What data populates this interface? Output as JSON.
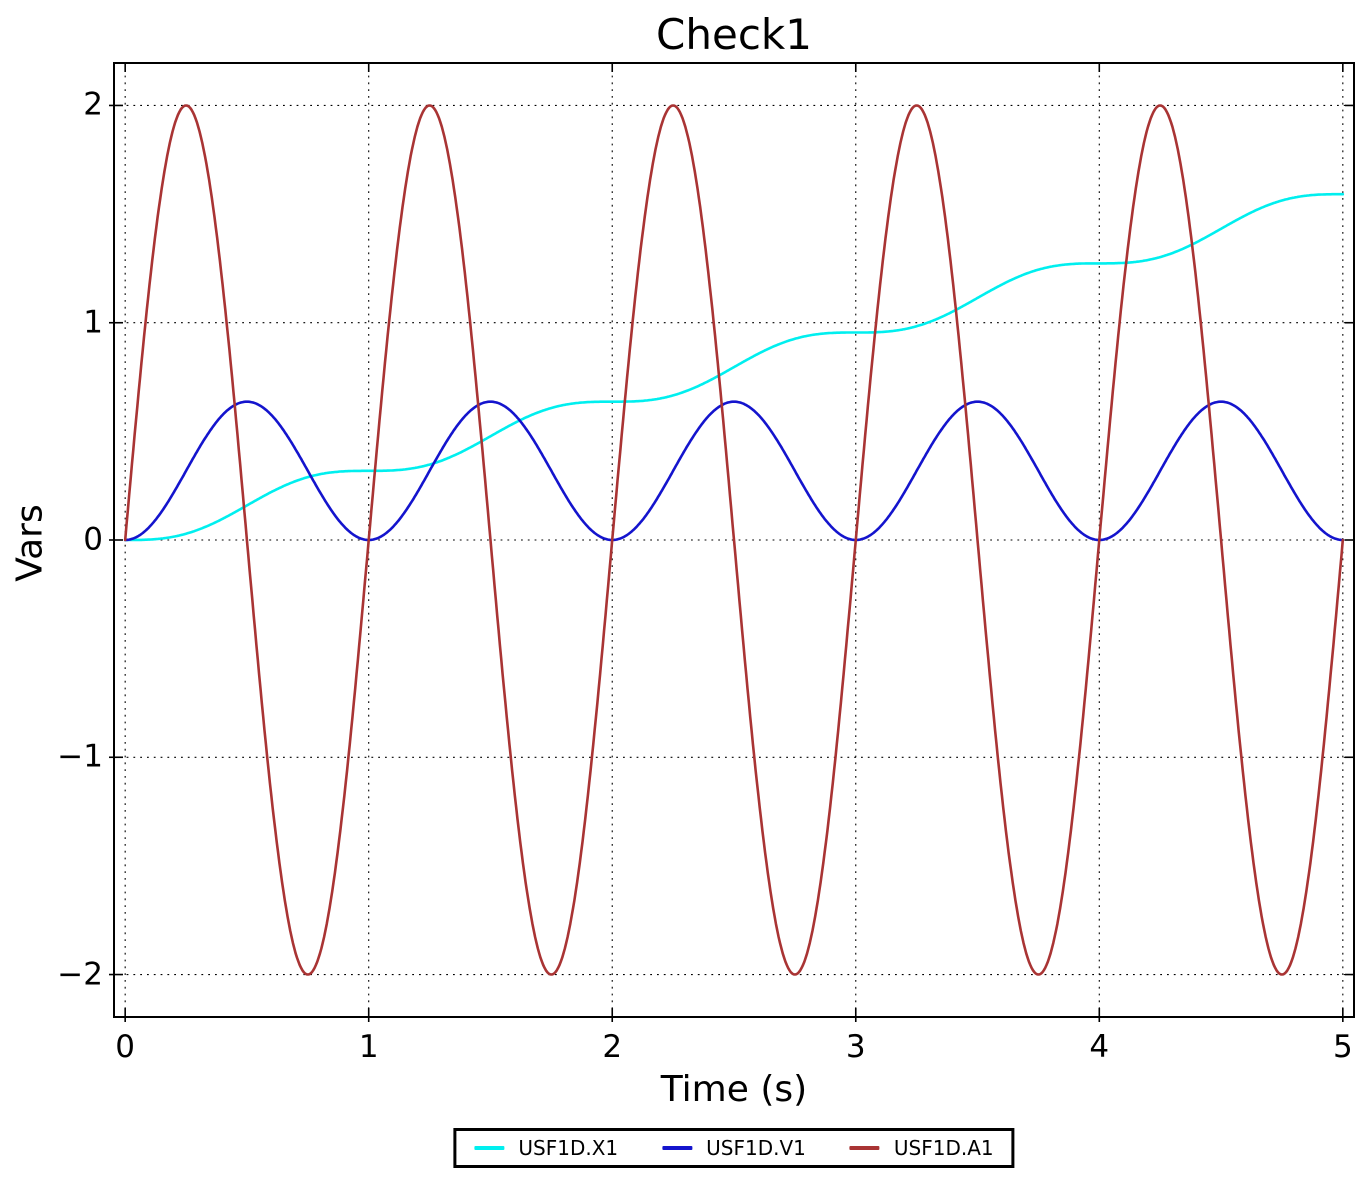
{
  "figure": {
    "background": "#ffffff"
  },
  "chart_data": {
    "type": "line",
    "title": "Check1",
    "xlabel": "Time (s)",
    "ylabel": "Vars",
    "xlim": [
      -0.05,
      5.05
    ],
    "ylim": [
      -2.2,
      2.2
    ],
    "x_range": [
      0,
      5
    ],
    "xticks": [
      0,
      1,
      2,
      3,
      4,
      5
    ],
    "xtick_labels": [
      "0",
      "1",
      "2",
      "3",
      "4",
      "5"
    ],
    "yticks": [
      -2,
      -1,
      0,
      1,
      2
    ],
    "ytick_labels": [
      "−2",
      "−1",
      "0",
      "1",
      "2"
    ],
    "grid": {
      "visible": true,
      "line_style": "dotted",
      "color": "#000000"
    },
    "axis_color": "#000000",
    "legend": {
      "position": "bottom-center",
      "border_color": "#000000",
      "background": "#ffffff"
    },
    "series": [
      {
        "name": "USF1D.X1",
        "color": "#00efef",
        "line_width": 2.6,
        "model": {
          "form": "sin",
          "offset": 0,
          "slope": 0.3183099,
          "amp": -0.0506606,
          "freq": 1
        },
        "key_points": {
          "t": [
            0,
            0.25,
            0.5,
            0.75,
            1,
            1.25,
            1.5,
            1.75,
            2,
            2.25,
            2.5,
            2.75,
            3,
            3.25,
            3.5,
            3.75,
            4,
            4.25,
            4.5,
            4.75,
            5
          ],
          "v": [
            0,
            0.0289,
            0.1592,
            0.2894,
            0.3183,
            0.3472,
            0.4775,
            0.6077,
            0.6366,
            0.6655,
            0.7958,
            0.926,
            0.9549,
            0.9839,
            1.1141,
            1.2443,
            1.2732,
            1.3022,
            1.4324,
            1.5626,
            1.5915
          ]
        }
      },
      {
        "name": "USF1D.V1",
        "color": "#1414cd",
        "line_width": 2.6,
        "model": {
          "form": "cos",
          "offset": 0.3183099,
          "slope": 0,
          "amp": -0.3183099,
          "freq": 1
        },
        "key_points": {
          "t": [
            0,
            0.25,
            0.5,
            0.75,
            1,
            1.25,
            1.5,
            1.75,
            2,
            2.25,
            2.5,
            2.75,
            3,
            3.25,
            3.5,
            3.75,
            4,
            4.25,
            4.5,
            4.75,
            5
          ],
          "v": [
            0,
            0.3183,
            0.6366,
            0.3183,
            0,
            0.3183,
            0.6366,
            0.3183,
            0,
            0.3183,
            0.6366,
            0.3183,
            0,
            0.3183,
            0.6366,
            0.3183,
            0,
            0.3183,
            0.6366,
            0.3183,
            0
          ]
        }
      },
      {
        "name": "USF1D.A1",
        "color": "#a93434",
        "line_width": 2.6,
        "model": {
          "form": "sin",
          "offset": 0,
          "slope": 0,
          "amp": 2,
          "freq": 1
        },
        "key_points": {
          "t": [
            0,
            0.25,
            0.5,
            0.75,
            1,
            1.25,
            1.5,
            1.75,
            2,
            2.25,
            2.5,
            2.75,
            3,
            3.25,
            3.5,
            3.75,
            4,
            4.25,
            4.5,
            4.75,
            5
          ],
          "v": [
            0,
            2,
            0,
            -2,
            0,
            2,
            0,
            -2,
            0,
            2,
            0,
            -2,
            0,
            2,
            0,
            -2,
            0,
            2,
            0,
            -2,
            0
          ]
        }
      }
    ]
  }
}
